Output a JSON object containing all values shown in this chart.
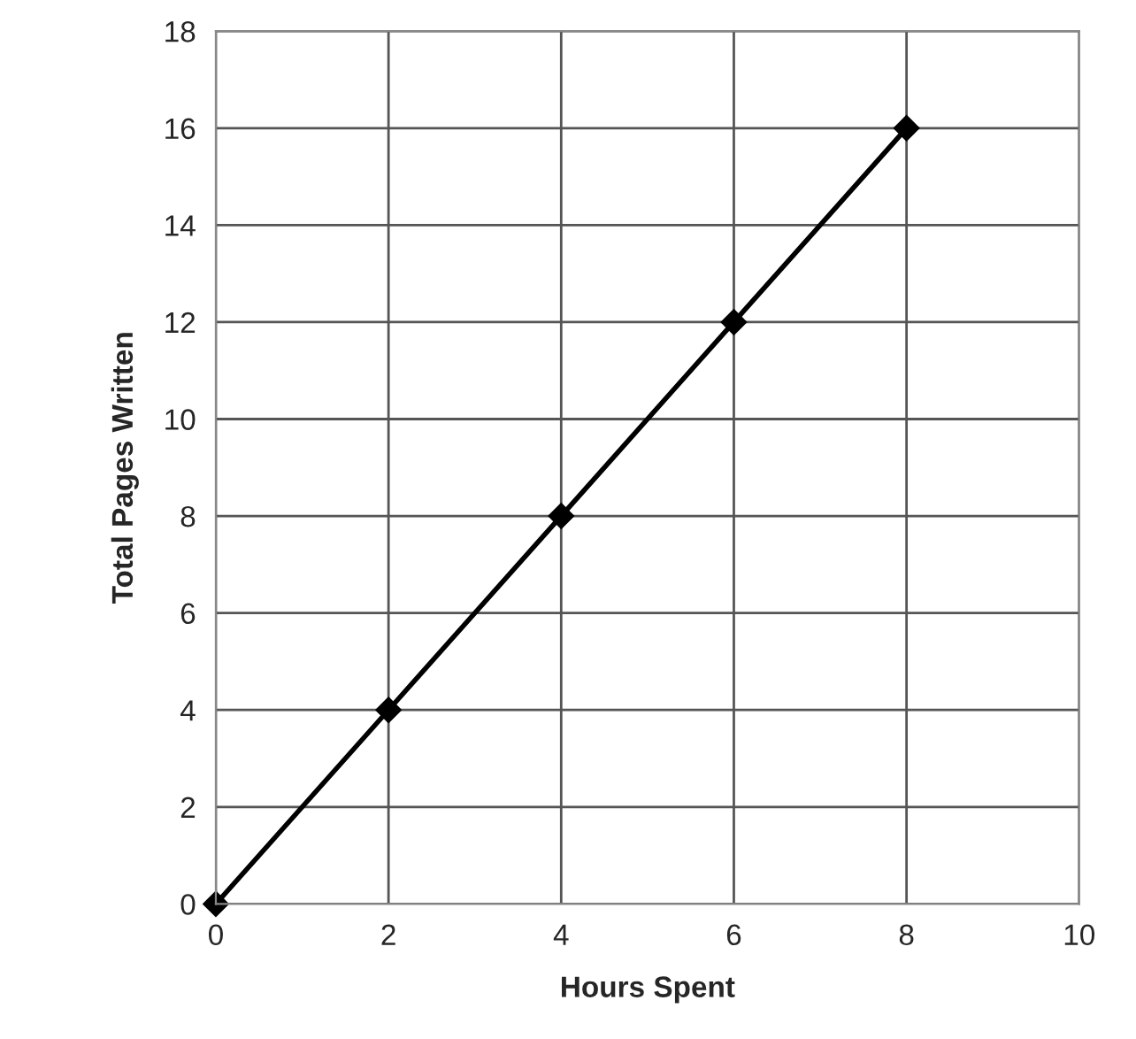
{
  "chart_data": {
    "type": "line",
    "xlabel": "Hours Spent",
    "ylabel": "Total Pages Written",
    "x": [
      0,
      2,
      4,
      6,
      8
    ],
    "series": [
      {
        "color": "#000000",
        "values": [
          0,
          4,
          8,
          12,
          16
        ]
      }
    ],
    "xlim": [
      0,
      10
    ],
    "xticks": [
      0,
      2,
      4,
      6,
      8,
      10
    ],
    "ylim": [
      0,
      18
    ],
    "yticks": [
      0,
      2,
      4,
      6,
      8,
      10,
      12,
      14,
      16,
      18
    ],
    "grid": true,
    "marker": "diamond",
    "line_style": "solid"
  }
}
